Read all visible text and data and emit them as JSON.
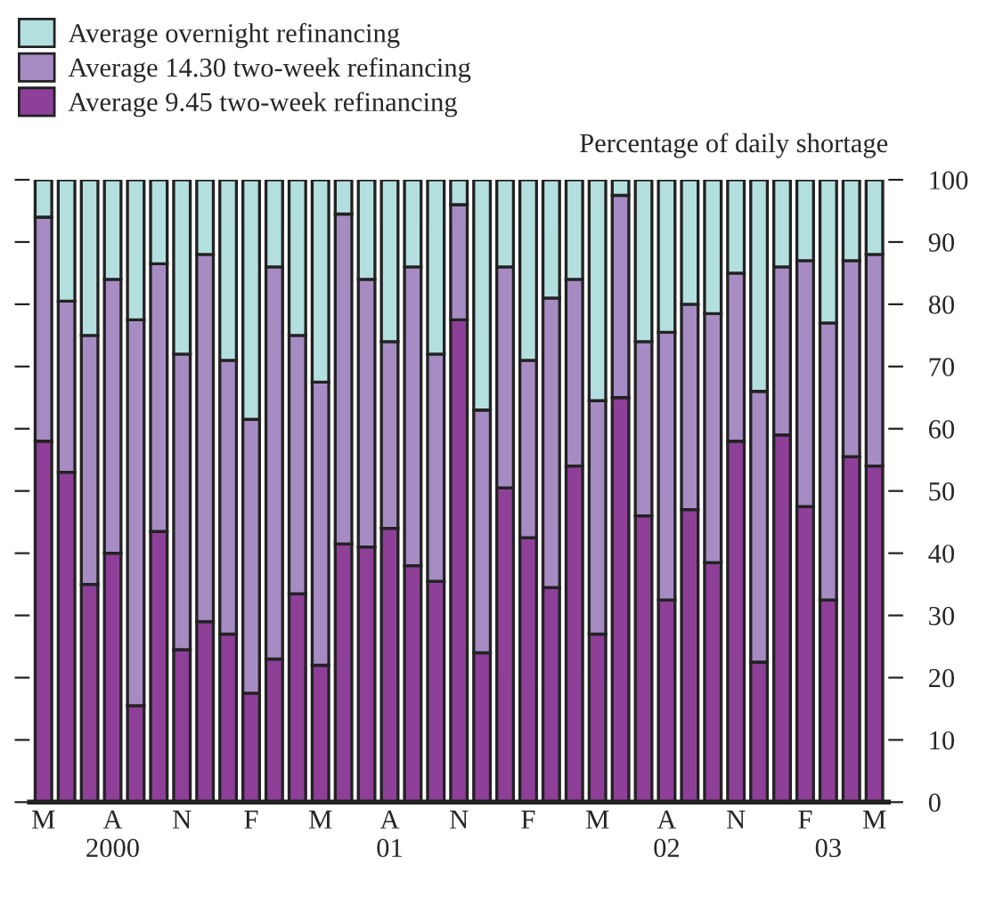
{
  "chart_data": {
    "type": "bar",
    "stacked": true,
    "ylabel": "Percentage of daily shortage",
    "legend": "top left",
    "grid": false,
    "ylim": [
      0,
      100
    ],
    "yticks": [
      0,
      10,
      20,
      30,
      40,
      50,
      60,
      70,
      80,
      90,
      100
    ],
    "categories": [
      "M",
      null,
      null,
      "A\n2000",
      null,
      null,
      "N",
      null,
      null,
      "F",
      null,
      null,
      "M",
      null,
      null,
      "A\n01",
      null,
      null,
      "N",
      null,
      null,
      "F",
      null,
      null,
      "M",
      null,
      null,
      "A\n02",
      null,
      null,
      "N",
      null,
      null,
      "F",
      "\n03",
      null,
      "M"
    ],
    "series": [
      {
        "name": "Average 9.45 two-week refinancing",
        "color": "#8e3f98",
        "values": [
          58,
          53,
          35,
          40,
          15.5,
          43.5,
          24.5,
          29,
          27,
          17.5,
          23,
          33.5,
          22,
          41.5,
          41,
          44,
          38,
          35.5,
          77.5,
          24,
          50.5,
          42.5,
          34.5,
          54,
          27,
          65,
          46,
          32.5,
          47,
          38.5,
          58,
          22.5,
          59,
          47.5,
          32.5,
          55.5,
          54
        ]
      },
      {
        "name": "Average 14.30 two-week refinancing",
        "color": "#a78cc4",
        "values": [
          36,
          27.5,
          40,
          44,
          62,
          43,
          47.5,
          59,
          44,
          44,
          63,
          41.5,
          45.5,
          53,
          43,
          30,
          48,
          36.5,
          18.5,
          39,
          35.5,
          28.5,
          46.5,
          30,
          37.5,
          32.5,
          28,
          43,
          33,
          40,
          27,
          43.5,
          27,
          39.5,
          44.5,
          31.5,
          34
        ]
      },
      {
        "name": "Average overnight refinancing",
        "color": "#b3e0df",
        "values": [
          6,
          19.5,
          25,
          16,
          22.5,
          13.5,
          28,
          12,
          29,
          38.5,
          14,
          25,
          32.5,
          5.5,
          16,
          26,
          14,
          28,
          4,
          37,
          14,
          29,
          19,
          16,
          35.5,
          2.5,
          26,
          24.5,
          20,
          21.5,
          15,
          34,
          14,
          13,
          23,
          13,
          12
        ]
      }
    ]
  }
}
